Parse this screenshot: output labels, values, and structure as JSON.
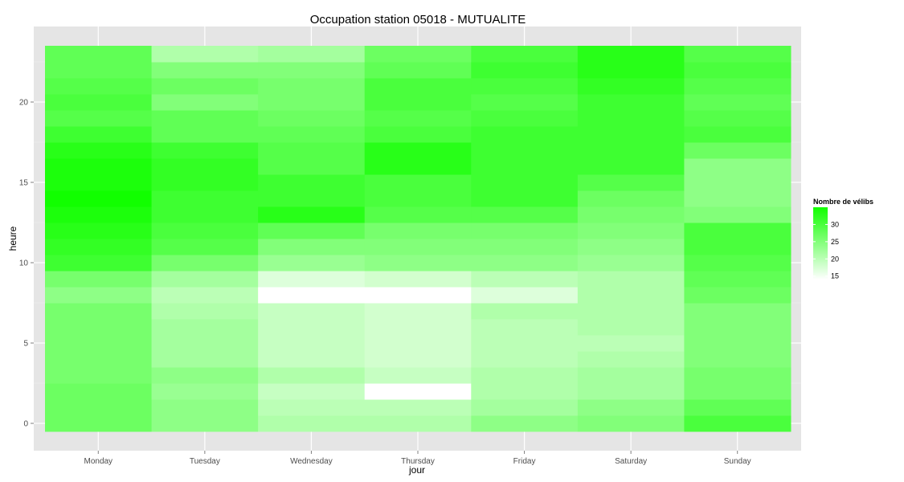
{
  "chart_data": {
    "type": "heatmap",
    "title": "Occupation station 05018 - MUTUALITE",
    "xlabel": "jour",
    "ylabel": "heure",
    "x_categories": [
      "Monday",
      "Tuesday",
      "Wednesday",
      "Thursday",
      "Friday",
      "Saturday",
      "Sunday"
    ],
    "y_hours": [
      0,
      1,
      2,
      3,
      4,
      5,
      6,
      7,
      8,
      9,
      10,
      11,
      12,
      13,
      14,
      15,
      16,
      17,
      18,
      19,
      20,
      21,
      22,
      23
    ],
    "y_ticks": [
      0,
      5,
      10,
      15,
      20
    ],
    "ylim": [
      -0.5,
      23.5
    ],
    "values": [
      [
        27,
        24,
        21,
        21,
        24,
        25,
        30
      ],
      [
        27,
        24,
        20,
        20,
        22,
        24,
        28
      ],
      [
        27,
        23,
        19,
        14,
        21,
        22,
        26
      ],
      [
        26,
        24,
        21,
        19,
        21,
        22,
        26
      ],
      [
        26,
        22,
        19,
        18,
        20,
        21,
        25
      ],
      [
        26,
        22,
        19,
        18,
        20,
        20,
        25
      ],
      [
        26,
        22,
        19,
        18,
        20,
        21,
        25
      ],
      [
        26,
        21,
        19,
        18,
        21,
        21,
        25
      ],
      [
        24,
        20,
        14,
        14,
        17,
        21,
        27
      ],
      [
        26,
        22,
        17,
        18,
        20,
        21,
        28
      ],
      [
        31,
        26,
        23,
        24,
        24,
        23,
        29
      ],
      [
        32,
        29,
        25,
        25,
        25,
        24,
        30
      ],
      [
        33,
        30,
        28,
        26,
        26,
        25,
        30
      ],
      [
        34,
        31,
        33,
        29,
        29,
        26,
        25
      ],
      [
        35,
        31,
        31,
        30,
        31,
        27,
        24
      ],
      [
        34,
        32,
        31,
        30,
        31,
        29,
        24
      ],
      [
        34,
        32,
        29,
        33,
        31,
        31,
        24
      ],
      [
        33,
        31,
        29,
        33,
        31,
        31,
        27
      ],
      [
        31,
        28,
        28,
        30,
        31,
        31,
        30
      ],
      [
        29,
        28,
        27,
        29,
        30,
        31,
        29
      ],
      [
        30,
        25,
        26,
        30,
        29,
        31,
        28
      ],
      [
        29,
        27,
        26,
        30,
        30,
        32,
        29
      ],
      [
        28,
        25,
        25,
        28,
        31,
        33,
        30
      ],
      [
        28,
        21,
        22,
        27,
        30,
        33,
        29
      ]
    ],
    "legend": {
      "title": "Nombre de vélibs",
      "ticks": [
        15,
        20,
        25,
        30
      ],
      "low_color": "#ffffff",
      "high_color": "#11ff00",
      "range": [
        14,
        35
      ],
      "position": "right"
    },
    "panel_background": "#e5e5e5",
    "grid": true
  }
}
